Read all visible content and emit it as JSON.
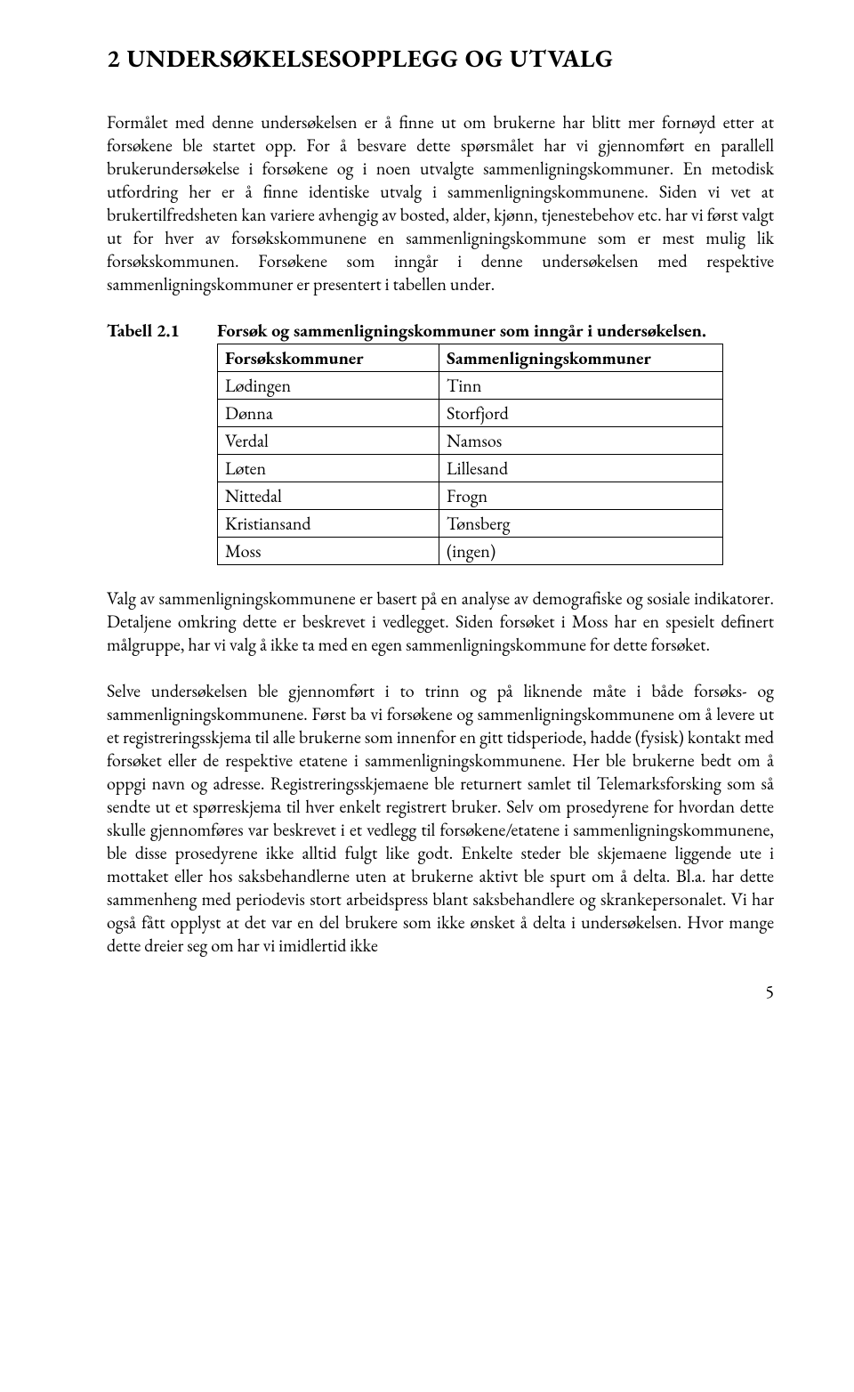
{
  "heading": "2   UNDERSØKELSESOPPLEGG OG UTVALG",
  "para1": "Formålet med denne undersøkelsen er å finne ut om brukerne har blitt mer fornøyd etter at forsøkene ble startet opp. For å besvare dette spørsmålet har vi gjennomført en parallell brukerundersøkelse i forsøkene og i noen utvalgte sammenligningskommuner. En metodisk utfordring her er å finne identiske utvalg i sammenligningskommunene. Siden vi vet at brukertilfredsheten kan variere avhengig av bosted, alder, kjønn, tjenestebehov etc. har vi først valgt ut for hver av forsøkskommunene en sammenligningskommune som er mest mulig lik forsøkskommunen. Forsøkene som inngår i denne undersøkelsen med respektive sammenligningskommuner er presentert i tabellen under.",
  "table": {
    "label": "Tabell 2.1",
    "title": "Forsøk og sammenligningskommuner som inngår i undersøkelsen.",
    "header": {
      "a": "Forsøkskommuner",
      "b": "Sammenligningskommuner"
    },
    "rows": [
      {
        "a": "Lødingen",
        "b": "Tinn"
      },
      {
        "a": "Dønna",
        "b": "Storfjord"
      },
      {
        "a": "Verdal",
        "b": "Namsos"
      },
      {
        "a": "Løten",
        "b": "Lillesand"
      },
      {
        "a": "Nittedal",
        "b": "Frogn"
      },
      {
        "a": "Kristiansand",
        "b": "Tønsberg"
      },
      {
        "a": "Moss",
        "b": "(ingen)"
      }
    ]
  },
  "para2": "Valg av sammenligningskommunene er basert på en analyse av demografiske og sosiale indikatorer. Detaljene omkring dette er beskrevet i vedlegget. Siden forsøket i Moss har en spesielt definert målgruppe, har vi valg å ikke ta med en egen sammenligningskommune for dette forsøket.",
  "para3": "Selve undersøkelsen ble gjennomført i to trinn og på liknende måte i både forsøks- og sammenligningskommunene. Først ba vi forsøkene og sammenligningskommunene om å levere ut et registreringsskjema til alle brukerne som innenfor en gitt tidsperiode, hadde (fysisk) kontakt med forsøket eller de respektive etatene i sammenligningskommunene. Her ble brukerne bedt om å oppgi navn og adresse. Registreringsskjemaene ble returnert samlet til Telemarksforsking som så sendte ut et spørreskjema til hver enkelt registrert bruker. Selv om prosedyrene for hvordan dette skulle gjennomføres var beskrevet i et vedlegg til forsøkene/etatene i sammenligningskommunene, ble disse prosedyrene ikke alltid fulgt like godt. Enkelte steder ble skjemaene liggende ute i mottaket eller hos saksbehandlerne uten at brukerne aktivt ble spurt om å delta. Bl.a. har dette sammenheng med periodevis stort arbeidspress blant saksbehandlere og skrankepersonalet. Vi har også fått opplyst at det var en del brukere som ikke ønsket å delta i undersøkelsen. Hvor mange dette dreier seg om har vi imidlertid ikke",
  "page_number": "5"
}
